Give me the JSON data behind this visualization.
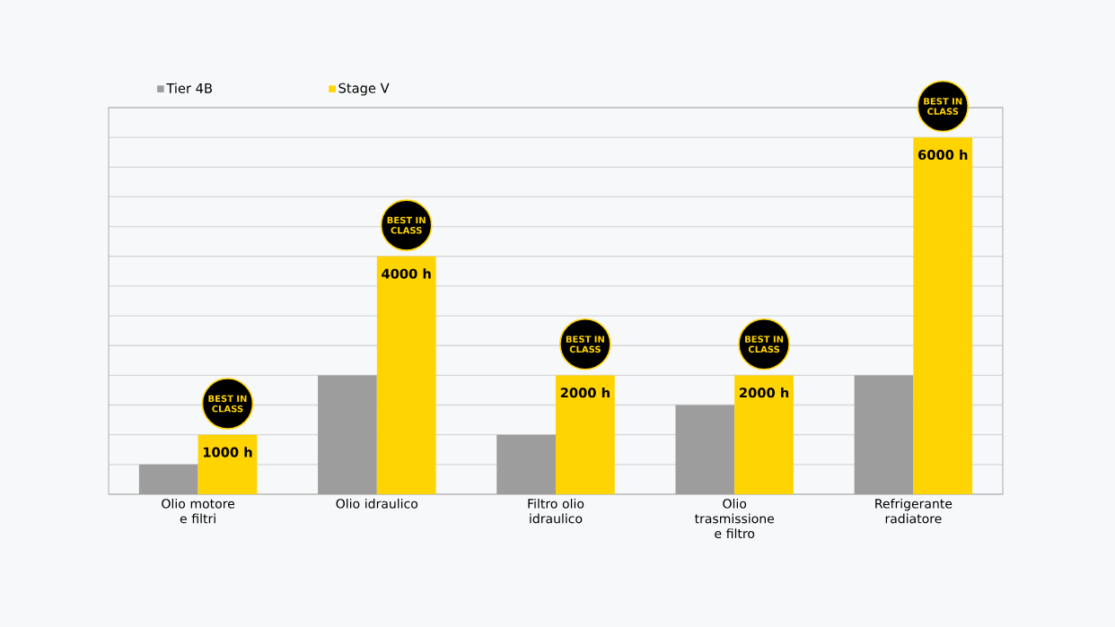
{
  "chart_data": {
    "type": "bar",
    "categories": [
      "Olio motore e filtri",
      "Olio idraulico",
      "Filtro olio idraulico",
      "Olio trasmissione e filtro",
      "Refrigerante radiatore"
    ],
    "series": [
      {
        "name": "Tier 4B",
        "color": "#9d9d9d",
        "values": [
          500,
          2000,
          1000,
          1500,
          2000
        ]
      },
      {
        "name": "Stage V",
        "color": "#ffd400",
        "values": [
          1000,
          4000,
          2000,
          2000,
          6000
        ],
        "value_labels": [
          "1000 h",
          "4000 h",
          "2000 h",
          "2000 h",
          "6000 h"
        ]
      }
    ],
    "ylim": [
      0,
      6500
    ],
    "yticks": [
      {
        "value": 0,
        "label": null
      },
      {
        "value": 500,
        "label": null
      },
      {
        "value": 1000,
        "label": null
      },
      {
        "value": 1500,
        "label": null
      },
      {
        "value": 2000,
        "label": null
      },
      {
        "value": 2500,
        "label": null
      },
      {
        "value": 3000,
        "label": null
      },
      {
        "value": 3500,
        "label": null
      },
      {
        "value": 4000,
        "label": null
      },
      {
        "value": 4500,
        "label": null
      },
      {
        "value": 5000,
        "label": null
      },
      {
        "value": 5500,
        "label": null
      },
      {
        "value": 6000,
        "label": null
      },
      {
        "value": 6500,
        "label": null
      }
    ],
    "tick_labels": "x",
    "grid": "y",
    "legend": "top left",
    "annotations": [
      "BEST IN CLASS",
      "BEST IN CLASS",
      "BEST IN CLASS",
      "BEST IN CLASS",
      "BEST IN CLASS"
    ]
  }
}
